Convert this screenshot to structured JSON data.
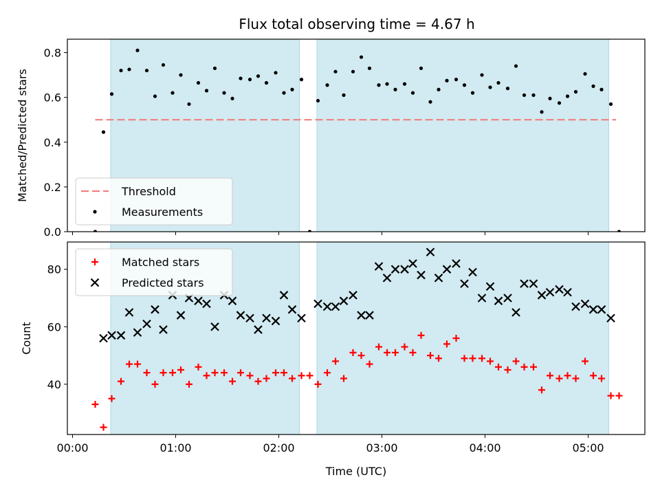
{
  "chart_data": {
    "type": "scatter",
    "title": "Flux total observing time = 4.67 h",
    "xlabel": "Time (UTC)",
    "x_unit": "hours",
    "xlim": [
      -0.05,
      5.55
    ],
    "x_ticks": [
      {
        "value": 0,
        "label": "00:00"
      },
      {
        "value": 1,
        "label": "01:00"
      },
      {
        "value": 2,
        "label": "02:00"
      },
      {
        "value": 3,
        "label": "03:00"
      },
      {
        "value": 4,
        "label": "04:00"
      },
      {
        "value": 5,
        "label": "05:00"
      }
    ],
    "shaded_intervals": [
      [
        0.37,
        2.2
      ],
      [
        2.37,
        5.2
      ]
    ],
    "shade_color": "#add8e6",
    "panels": [
      {
        "id": "ratio",
        "ylabel": "Matched/Predicted stars",
        "ylim": [
          0,
          0.86
        ],
        "y_ticks": [
          {
            "value": 0.0,
            "label": "0.0"
          },
          {
            "value": 0.2,
            "label": "0.2"
          },
          {
            "value": 0.4,
            "label": "0.4"
          },
          {
            "value": 0.6,
            "label": "0.6"
          },
          {
            "value": 0.8,
            "label": "0.8"
          }
        ],
        "legend": {
          "position": "lower-left",
          "entries": [
            {
              "label": "Threshold",
              "marker": "dash-line",
              "color": "#f08080"
            },
            {
              "label": "Measurements",
              "marker": "dot",
              "color": "#000000"
            }
          ]
        },
        "threshold": {
          "name": "Threshold",
          "y": 0.5,
          "x_range": [
            0.22,
            5.27
          ],
          "color": "#f08080"
        },
        "series": [
          {
            "name": "Measurements",
            "marker": "dot",
            "color": "#000000",
            "points": [
              [
                0.22,
                0.0
              ],
              [
                0.3,
                0.445
              ],
              [
                0.38,
                0.615
              ],
              [
                0.47,
                0.72
              ],
              [
                0.55,
                0.725
              ],
              [
                0.63,
                0.81
              ],
              [
                0.72,
                0.72
              ],
              [
                0.8,
                0.605
              ],
              [
                0.88,
                0.745
              ],
              [
                0.97,
                0.62
              ],
              [
                1.05,
                0.7
              ],
              [
                1.13,
                0.57
              ],
              [
                1.22,
                0.665
              ],
              [
                1.3,
                0.63
              ],
              [
                1.38,
                0.73
              ],
              [
                1.47,
                0.62
              ],
              [
                1.55,
                0.595
              ],
              [
                1.63,
                0.685
              ],
              [
                1.72,
                0.68
              ],
              [
                1.8,
                0.695
              ],
              [
                1.88,
                0.665
              ],
              [
                1.97,
                0.71
              ],
              [
                2.05,
                0.62
              ],
              [
                2.13,
                0.635
              ],
              [
                2.22,
                0.68
              ],
              [
                2.3,
                0.0
              ],
              [
                2.38,
                0.585
              ],
              [
                2.47,
                0.655
              ],
              [
                2.55,
                0.715
              ],
              [
                2.63,
                0.61
              ],
              [
                2.72,
                0.715
              ],
              [
                2.8,
                0.78
              ],
              [
                2.88,
                0.73
              ],
              [
                2.97,
                0.655
              ],
              [
                3.05,
                0.66
              ],
              [
                3.13,
                0.635
              ],
              [
                3.22,
                0.66
              ],
              [
                3.3,
                0.62
              ],
              [
                3.38,
                0.73
              ],
              [
                3.47,
                0.58
              ],
              [
                3.55,
                0.635
              ],
              [
                3.63,
                0.675
              ],
              [
                3.72,
                0.68
              ],
              [
                3.8,
                0.655
              ],
              [
                3.88,
                0.62
              ],
              [
                3.97,
                0.7
              ],
              [
                4.05,
                0.645
              ],
              [
                4.13,
                0.665
              ],
              [
                4.22,
                0.64
              ],
              [
                4.3,
                0.74
              ],
              [
                4.38,
                0.61
              ],
              [
                4.47,
                0.61
              ],
              [
                4.55,
                0.535
              ],
              [
                4.63,
                0.595
              ],
              [
                4.72,
                0.575
              ],
              [
                4.8,
                0.605
              ],
              [
                4.88,
                0.625
              ],
              [
                4.97,
                0.705
              ],
              [
                5.05,
                0.65
              ],
              [
                5.13,
                0.635
              ],
              [
                5.22,
                0.57
              ],
              [
                5.3,
                0.0
              ]
            ]
          }
        ]
      },
      {
        "id": "counts",
        "ylabel": "Count",
        "ylim": [
          22.5,
          89.5
        ],
        "y_ticks": [
          {
            "value": 40,
            "label": "40"
          },
          {
            "value": 60,
            "label": "60"
          },
          {
            "value": 80,
            "label": "80"
          }
        ],
        "legend": {
          "position": "top-left",
          "entries": [
            {
              "label": "Matched stars",
              "marker": "plus",
              "color": "#ff0000"
            },
            {
              "label": "Predicted stars",
              "marker": "x",
              "color": "#000000"
            }
          ]
        },
        "series": [
          {
            "name": "Matched stars",
            "marker": "plus",
            "color": "#ff0000",
            "points": [
              [
                0.22,
                33
              ],
              [
                0.3,
                25
              ],
              [
                0.38,
                35
              ],
              [
                0.47,
                41
              ],
              [
                0.55,
                47
              ],
              [
                0.63,
                47
              ],
              [
                0.72,
                44
              ],
              [
                0.8,
                40
              ],
              [
                0.88,
                44
              ],
              [
                0.97,
                44
              ],
              [
                1.05,
                45
              ],
              [
                1.13,
                40
              ],
              [
                1.22,
                46
              ],
              [
                1.3,
                43
              ],
              [
                1.38,
                44
              ],
              [
                1.47,
                44
              ],
              [
                1.55,
                41
              ],
              [
                1.63,
                44
              ],
              [
                1.72,
                43
              ],
              [
                1.8,
                41
              ],
              [
                1.88,
                42
              ],
              [
                1.97,
                44
              ],
              [
                2.05,
                44
              ],
              [
                2.13,
                42
              ],
              [
                2.22,
                43
              ],
              [
                2.3,
                43
              ],
              [
                2.38,
                40
              ],
              [
                2.47,
                44
              ],
              [
                2.55,
                48
              ],
              [
                2.63,
                42
              ],
              [
                2.72,
                51
              ],
              [
                2.8,
                50
              ],
              [
                2.88,
                47
              ],
              [
                2.97,
                53
              ],
              [
                3.05,
                51
              ],
              [
                3.13,
                51
              ],
              [
                3.22,
                53
              ],
              [
                3.3,
                51
              ],
              [
                3.38,
                57
              ],
              [
                3.47,
                50
              ],
              [
                3.55,
                49
              ],
              [
                3.63,
                54
              ],
              [
                3.72,
                56
              ],
              [
                3.8,
                49
              ],
              [
                3.88,
                49
              ],
              [
                3.97,
                49
              ],
              [
                4.05,
                48
              ],
              [
                4.13,
                46
              ],
              [
                4.22,
                45
              ],
              [
                4.3,
                48
              ],
              [
                4.38,
                46
              ],
              [
                4.47,
                46
              ],
              [
                4.55,
                38
              ],
              [
                4.63,
                43
              ],
              [
                4.72,
                42
              ],
              [
                4.8,
                43
              ],
              [
                4.88,
                42
              ],
              [
                4.97,
                48
              ],
              [
                5.05,
                43
              ],
              [
                5.13,
                42
              ],
              [
                5.22,
                36
              ],
              [
                5.3,
                36
              ]
            ]
          },
          {
            "name": "Predicted stars",
            "marker": "x",
            "color": "#000000",
            "points": [
              [
                0.3,
                56
              ],
              [
                0.38,
                57
              ],
              [
                0.47,
                57
              ],
              [
                0.55,
                65
              ],
              [
                0.63,
                58
              ],
              [
                0.72,
                61
              ],
              [
                0.8,
                66
              ],
              [
                0.88,
                59
              ],
              [
                0.97,
                71
              ],
              [
                1.05,
                64
              ],
              [
                1.13,
                70
              ],
              [
                1.22,
                69
              ],
              [
                1.3,
                68
              ],
              [
                1.38,
                60
              ],
              [
                1.47,
                71
              ],
              [
                1.55,
                69
              ],
              [
                1.63,
                64
              ],
              [
                1.72,
                63
              ],
              [
                1.8,
                59
              ],
              [
                1.88,
                63
              ],
              [
                1.97,
                62
              ],
              [
                2.05,
                71
              ],
              [
                2.13,
                66
              ],
              [
                2.22,
                63
              ],
              [
                2.38,
                68
              ],
              [
                2.47,
                67
              ],
              [
                2.55,
                67
              ],
              [
                2.63,
                69
              ],
              [
                2.72,
                71
              ],
              [
                2.8,
                64
              ],
              [
                2.88,
                64
              ],
              [
                2.97,
                81
              ],
              [
                3.05,
                77
              ],
              [
                3.13,
                80
              ],
              [
                3.22,
                80
              ],
              [
                3.3,
                82
              ],
              [
                3.38,
                78
              ],
              [
                3.47,
                86
              ],
              [
                3.55,
                77
              ],
              [
                3.63,
                80
              ],
              [
                3.72,
                82
              ],
              [
                3.8,
                75
              ],
              [
                3.88,
                79
              ],
              [
                3.97,
                70
              ],
              [
                4.05,
                74
              ],
              [
                4.13,
                69
              ],
              [
                4.22,
                70
              ],
              [
                4.3,
                65
              ],
              [
                4.38,
                75
              ],
              [
                4.47,
                75
              ],
              [
                4.55,
                71
              ],
              [
                4.63,
                72
              ],
              [
                4.72,
                73
              ],
              [
                4.8,
                72
              ],
              [
                4.88,
                67
              ],
              [
                4.97,
                68
              ],
              [
                5.05,
                66
              ],
              [
                5.13,
                66
              ],
              [
                5.22,
                63
              ]
            ]
          }
        ]
      }
    ]
  }
}
